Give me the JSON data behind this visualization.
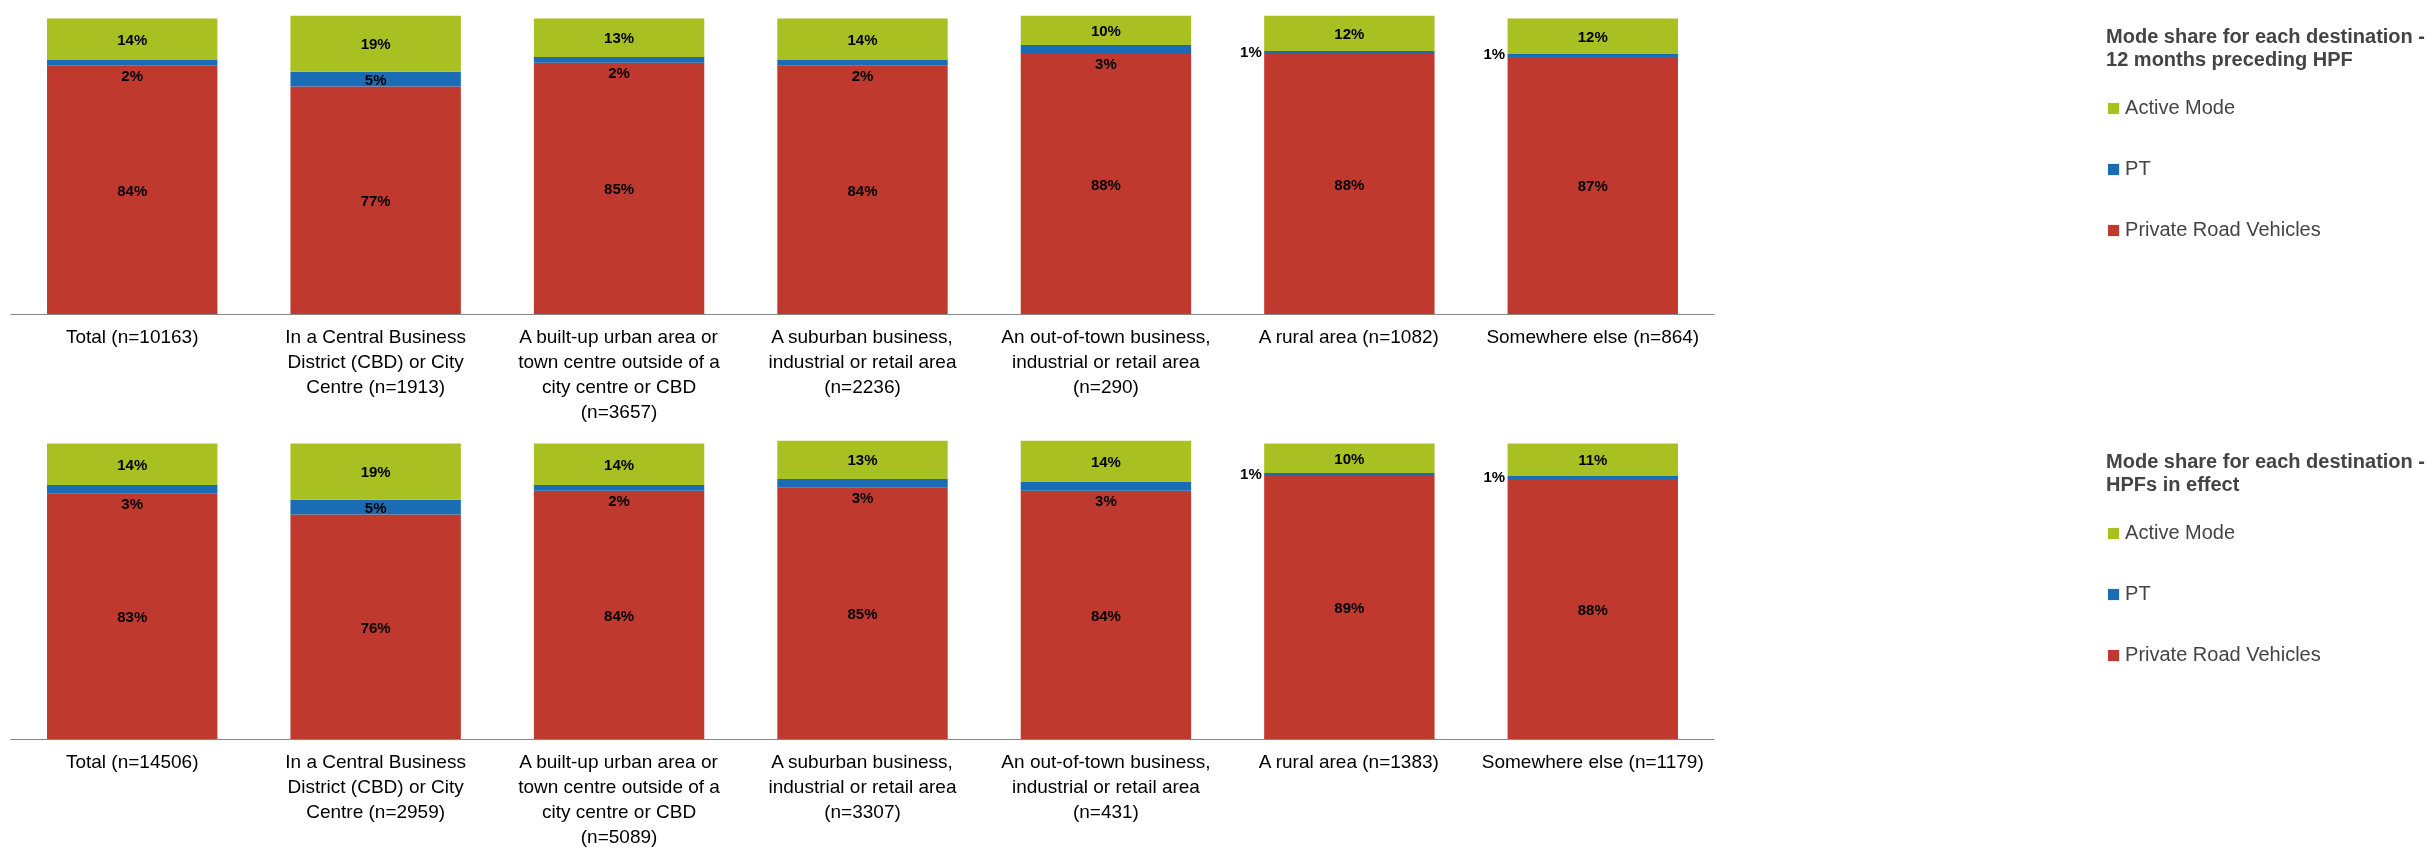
{
  "chart_data": [
    {
      "type": "bar",
      "stacked": true,
      "legend": "right",
      "grid": false,
      "legend_title": "Mode share for each destination - 12 months preceding HPF",
      "categories": [
        "Total (n=10163)",
        "In a Central Business District (CBD) or City Centre (n=1913)",
        "A built-up urban area or town centre outside of a city centre or CBD (n=3657)",
        "A suburban business, industrial or retail area (n=2236)",
        "An out-of-town business, industrial or retail area (n=290)",
        "A rural area (n=1082)",
        "Somewhere else (n=864)"
      ],
      "series": [
        {
          "name": "Private Road Vehicles",
          "color": "#c0392f",
          "values": [
            84,
            77,
            85,
            84,
            88,
            88,
            87
          ],
          "value_labels": [
            "84%",
            "77%",
            "85%",
            "84%",
            "88%",
            "88%",
            "87%"
          ]
        },
        {
          "name": "PT",
          "color": "#1a6db4",
          "values": [
            2,
            5,
            2,
            2,
            3,
            1,
            1
          ],
          "value_labels": [
            "2%",
            "5%",
            "2%",
            "2%",
            "3%",
            "1%",
            "1%"
          ]
        },
        {
          "name": "Active Mode",
          "color": "#a9c023",
          "values": [
            14,
            19,
            13,
            14,
            10,
            12,
            12
          ],
          "value_labels": [
            "14%",
            "19%",
            "13%",
            "14%",
            "10%",
            "12%",
            "12%"
          ]
        }
      ]
    },
    {
      "type": "bar",
      "stacked": true,
      "legend": "right",
      "grid": false,
      "legend_title": "Mode share for each destination - HPFs in effect",
      "categories": [
        "Total (n=14506)",
        "In a Central Business District (CBD) or City Centre (n=2959)",
        "A built-up urban area or town centre outside of a city centre or CBD (n=5089)",
        "A suburban business, industrial or retail area (n=3307)",
        "An out-of-town business, industrial or retail area (n=431)",
        "A rural area (n=1383)",
        "Somewhere else (n=1179)"
      ],
      "series": [
        {
          "name": "Private Road Vehicles",
          "color": "#c0392f",
          "values": [
            83,
            76,
            84,
            85,
            84,
            89,
            88
          ],
          "value_labels": [
            "83%",
            "76%",
            "84%",
            "85%",
            "84%",
            "89%",
            "88%"
          ]
        },
        {
          "name": "PT",
          "color": "#1a6db4",
          "values": [
            3,
            5,
            2,
            3,
            3,
            1,
            1
          ],
          "value_labels": [
            "3%",
            "5%",
            "2%",
            "3%",
            "3%",
            "1%",
            "1%"
          ]
        },
        {
          "name": "Active Mode",
          "color": "#a9c023",
          "values": [
            14,
            19,
            14,
            13,
            14,
            10,
            11
          ],
          "value_labels": [
            "14%",
            "19%",
            "14%",
            "13%",
            "14%",
            "10%",
            "11%"
          ]
        }
      ]
    }
  ]
}
